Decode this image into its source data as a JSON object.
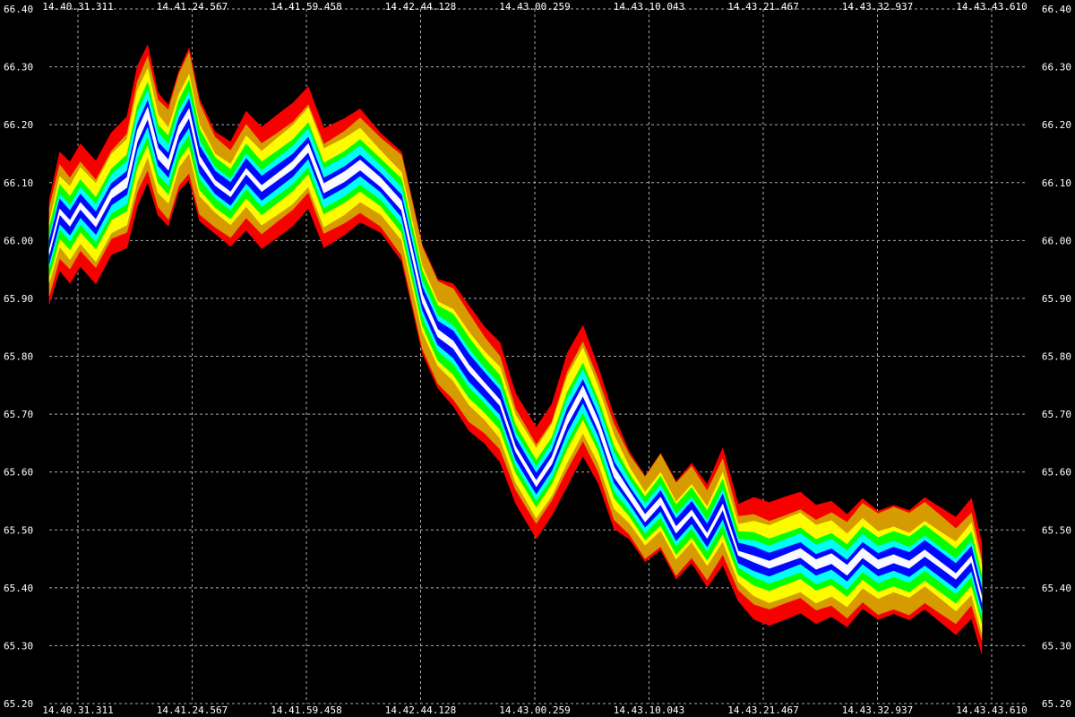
{
  "chart_data": {
    "type": "area",
    "title": "",
    "xlabel": "",
    "ylabel": "",
    "ylim": [
      65.2,
      66.4
    ],
    "grid": true,
    "legend": "none",
    "y_ticks": [
      "66.40",
      "66.30",
      "66.20",
      "66.10",
      "66.00",
      "65.90",
      "65.80",
      "65.70",
      "65.60",
      "65.50",
      "65.40",
      "65.30",
      "65.20"
    ],
    "x_ticks_top": [
      "14.40.31.311",
      "14.41.24.567",
      "14.41.59.458",
      "14.42.44.128",
      "14.43.00.259",
      "14.43.10.043",
      "14.43.21.467",
      "14.43.32.937",
      "14.43.43.610"
    ],
    "x_ticks_bottom": [
      "14.40.31.311",
      "14.41.24.567",
      "14.41.59.458",
      "14.42.44.128",
      "14.43.00.259",
      "14.43.10.043",
      "14.43.21.467",
      "14.43.32.937",
      "14.43.43.610"
    ],
    "x_label_positions": [
      0.0,
      0.1,
      0.2,
      0.3,
      0.4,
      0.5,
      0.6,
      0.7,
      0.8
    ],
    "band_colors": [
      "#ff0000",
      "#d4a000",
      "#ffff00",
      "#00ff00",
      "#00ffff",
      "#0000ff",
      "#ffffff"
    ],
    "series": [
      {
        "x": [
          0.0,
          0.01,
          0.02,
          0.03,
          0.045,
          0.06,
          0.075,
          0.085,
          0.095,
          0.105,
          0.115,
          0.125,
          0.135,
          0.145,
          0.16,
          0.175,
          0.19,
          0.205,
          0.22,
          0.235,
          0.25,
          0.265,
          0.285,
          0.3,
          0.32,
          0.34,
          0.36,
          0.375,
          0.39,
          0.405,
          0.42,
          0.435,
          0.45,
          0.47,
          0.485,
          0.5,
          0.515,
          0.53,
          0.545,
          0.56,
          0.575,
          0.59,
          0.605,
          0.62,
          0.635,
          0.65,
          0.665,
          0.68,
          0.695,
          0.71,
          0.725,
          0.74,
          0.755,
          0.77,
          0.785,
          0.8,
          0.815,
          0.83,
          0.845,
          0.86,
          0.875,
          0.89,
          0.9
        ],
        "mid": [
          65.98,
          66.05,
          66.03,
          66.06,
          66.03,
          66.08,
          66.1,
          66.18,
          66.22,
          66.15,
          66.13,
          66.19,
          66.22,
          66.14,
          66.1,
          66.08,
          66.12,
          66.09,
          66.11,
          66.13,
          66.16,
          66.09,
          66.11,
          66.13,
          66.1,
          66.06,
          65.9,
          65.84,
          65.82,
          65.78,
          65.75,
          65.72,
          65.64,
          65.58,
          65.62,
          65.69,
          65.74,
          65.68,
          65.6,
          65.56,
          65.52,
          65.55,
          65.5,
          65.53,
          65.49,
          65.54,
          65.46,
          65.45,
          65.44,
          65.45,
          65.46,
          65.44,
          65.45,
          65.43,
          65.46,
          65.44,
          65.45,
          65.44,
          65.46,
          65.44,
          65.42,
          65.45,
          65.38
        ],
        "spread": [
          0.09,
          0.1,
          0.1,
          0.1,
          0.1,
          0.1,
          0.11,
          0.12,
          0.12,
          0.11,
          0.11,
          0.11,
          0.12,
          0.11,
          0.09,
          0.09,
          0.1,
          0.1,
          0.1,
          0.1,
          0.1,
          0.1,
          0.1,
          0.1,
          0.09,
          0.1,
          0.1,
          0.1,
          0.11,
          0.11,
          0.1,
          0.1,
          0.09,
          0.09,
          0.09,
          0.11,
          0.11,
          0.1,
          0.1,
          0.08,
          0.08,
          0.09,
          0.09,
          0.09,
          0.09,
          0.1,
          0.08,
          0.1,
          0.1,
          0.1,
          0.1,
          0.1,
          0.1,
          0.1,
          0.1,
          0.1,
          0.1,
          0.1,
          0.1,
          0.1,
          0.1,
          0.1,
          0.09
        ]
      }
    ]
  }
}
